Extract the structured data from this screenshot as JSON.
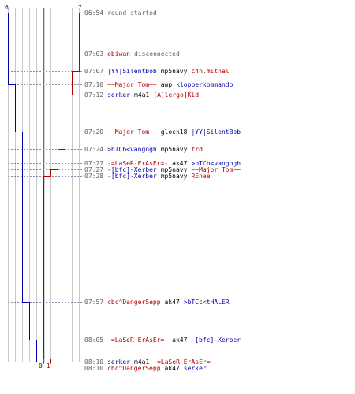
{
  "colors": {
    "team_blue": "#0000b0",
    "team_red": "#b00000",
    "time_gray": "#606060",
    "grid": "#c8c8c8",
    "center_line": "#707070"
  },
  "scoreboard": {
    "blue_start": "6",
    "red_start": "7",
    "blue_end": "0",
    "red_end": "1"
  },
  "events": [
    {
      "time": "06:54",
      "type": "message",
      "message": "round started"
    },
    {
      "time": "07:03",
      "type": "message",
      "player": "obiwan",
      "player_team": "red",
      "message": "disconnected"
    },
    {
      "time": "07:07",
      "type": "kill",
      "killer": "|YY|SilentBob",
      "killer_team": "blue",
      "weapon": "mp5navy",
      "victim": "c4n.mitnal",
      "victim_team": "red"
    },
    {
      "time": "07:10",
      "type": "kill",
      "killer": "~~Major Tom~~",
      "killer_team": "red",
      "weapon": "awp",
      "victim": "klopperkommando",
      "victim_team": "blue"
    },
    {
      "time": "07:12",
      "type": "kill",
      "killer": "serker",
      "killer_team": "blue",
      "weapon": "m4a1",
      "victim": "[A]lergo]Kid",
      "victim_team": "red"
    },
    {
      "time": "07:20",
      "type": "kill",
      "killer": "~~Major Tom~~",
      "killer_team": "red",
      "weapon": "glock18",
      "victim": "|YY|SilentBob",
      "victim_team": "blue"
    },
    {
      "time": "07:24",
      "type": "kill",
      "killer": ">bTCb<vangogh",
      "killer_team": "blue",
      "weapon": "mp5navy",
      "victim": "frd",
      "victim_team": "red"
    },
    {
      "time": "07:27",
      "type": "kill",
      "killer": "-=LaSeR-ErAsEr=-",
      "killer_team": "red",
      "weapon": "ak47",
      "victim": ">bTCb<vangogh",
      "victim_team": "blue"
    },
    {
      "time": "07:27",
      "type": "kill",
      "killer": "-[bfc]-Xerber",
      "killer_team": "blue",
      "weapon": "mp5navy",
      "victim": "~~Major Tom~~",
      "victim_team": "red"
    },
    {
      "time": "07:28",
      "type": "kill",
      "killer": "-[bfc]-Xerber",
      "killer_team": "blue",
      "weapon": "mp5navy",
      "victim": "REnee",
      "victim_team": "red"
    },
    {
      "time": "07:57",
      "type": "kill",
      "killer": "cbc^DangerSepp",
      "killer_team": "red",
      "weapon": "ak47",
      "victim": ">bTCc<tHALER",
      "victim_team": "blue"
    },
    {
      "time": "08:05",
      "type": "kill",
      "killer": "-=LaSeR-ErAsEr=-",
      "killer_team": "red",
      "weapon": "ak47",
      "victim": "-[bfc]-Xerber",
      "victim_team": "blue"
    },
    {
      "time": "08:10",
      "type": "kill",
      "killer": "serker",
      "killer_team": "blue",
      "weapon": "m4a1",
      "victim": "-=LaSeR-ErAsEr=-",
      "victim_team": "red"
    },
    {
      "time": "08:10",
      "type": "kill",
      "killer": "cbc^DangerSepp",
      "killer_team": "red",
      "weapon": "ak47",
      "victim": "serker",
      "victim_team": "blue"
    }
  ]
}
